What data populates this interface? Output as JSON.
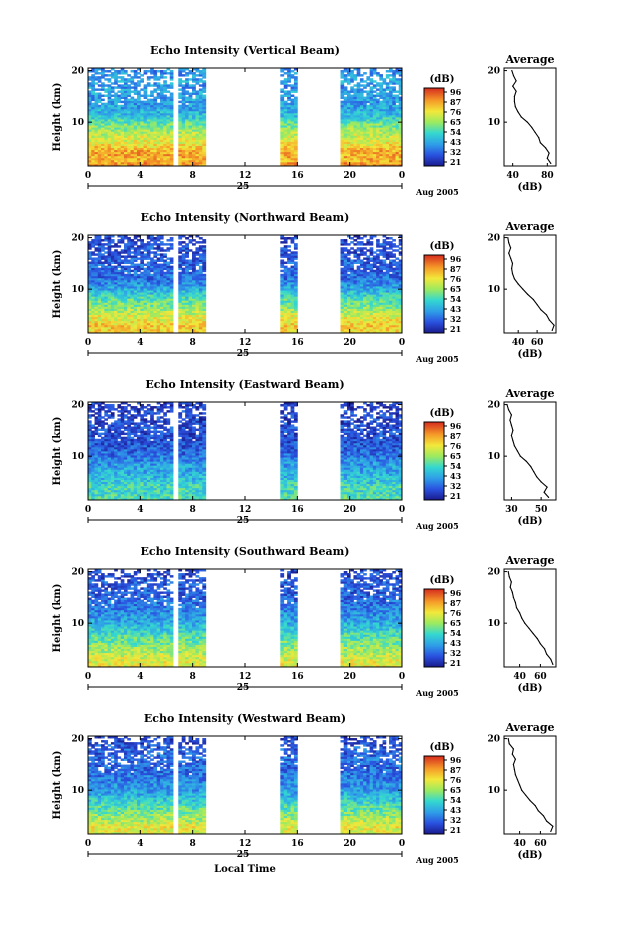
{
  "chart_data": [
    {
      "type": "heatmap",
      "title": "Echo Intensity (Vertical Beam)",
      "ylabel": "Height (km)",
      "xlabel": "",
      "x_ticks": [
        "0",
        "4",
        "8",
        "12",
        "16",
        "20",
        "0"
      ],
      "y_ticks": [
        "10",
        "20"
      ],
      "date_day": "25",
      "date_month": "Aug 2005",
      "xlim_hours": [
        0,
        24
      ],
      "ylim_km": [
        1.5,
        20.5
      ],
      "data_hours": [
        [
          0,
          6.5
        ],
        [
          6.9,
          9.0
        ],
        [
          14.7,
          16.0
        ],
        [
          19.3,
          24.0
        ]
      ],
      "colorbar": {
        "unit": "(dB)",
        "ticks": [
          "96",
          "87",
          "76",
          "65",
          "54",
          "43",
          "32",
          "21"
        ],
        "range": [
          21,
          96
        ]
      },
      "profile": {
        "title": "Average",
        "xlabel": "(dB)",
        "x_ticks": [
          "40",
          "80"
        ],
        "xlim": [
          30,
          90
        ],
        "y_ticks": [
          "10",
          "20"
        ],
        "height_km": [
          2,
          3,
          4,
          5,
          6,
          7,
          8,
          9,
          10,
          11,
          12,
          13,
          14,
          15,
          16,
          17,
          18,
          19,
          20
        ],
        "mean_db": [
          84,
          80,
          82,
          78,
          72,
          70,
          66,
          62,
          57,
          50,
          46,
          43,
          42,
          42,
          44,
          40,
          44,
          41,
          39
        ]
      }
    },
    {
      "type": "heatmap",
      "title": "Echo Intensity (Northward Beam)",
      "ylabel": "Height (km)",
      "xlabel": "",
      "x_ticks": [
        "0",
        "4",
        "8",
        "12",
        "16",
        "20",
        "0"
      ],
      "y_ticks": [
        "10",
        "20"
      ],
      "date_day": "25",
      "date_month": "Aug 2005",
      "xlim_hours": [
        0,
        24
      ],
      "ylim_km": [
        1.5,
        20.5
      ],
      "data_hours": [
        [
          0,
          6.5
        ],
        [
          6.9,
          9.0
        ],
        [
          14.7,
          16.0
        ],
        [
          19.3,
          24.0
        ]
      ],
      "colorbar": {
        "unit": "(dB)",
        "ticks": [
          "96",
          "87",
          "76",
          "65",
          "54",
          "43",
          "32",
          "21"
        ],
        "range": [
          21,
          96
        ]
      },
      "profile": {
        "title": "Average",
        "xlabel": "(dB)",
        "x_ticks": [
          "40",
          "60"
        ],
        "xlim": [
          25,
          80
        ],
        "y_ticks": [
          "10",
          "20"
        ],
        "height_km": [
          2,
          3,
          4,
          5,
          6,
          7,
          8,
          9,
          10,
          11,
          12,
          13,
          14,
          15,
          16,
          17,
          18,
          19,
          20
        ],
        "mean_db": [
          76,
          78,
          73,
          70,
          64,
          60,
          56,
          50,
          45,
          40,
          36,
          34,
          33,
          34,
          32,
          30,
          32,
          30,
          29
        ]
      }
    },
    {
      "type": "heatmap",
      "title": "Echo Intensity (Eastward Beam)",
      "ylabel": "Height (km)",
      "xlabel": "",
      "x_ticks": [
        "0",
        "4",
        "8",
        "12",
        "16",
        "20",
        "0"
      ],
      "y_ticks": [
        "10",
        "20"
      ],
      "date_day": "25",
      "date_month": "Aug 2005",
      "xlim_hours": [
        0,
        24
      ],
      "ylim_km": [
        1.5,
        20.5
      ],
      "data_hours": [
        [
          0,
          6.5
        ],
        [
          6.9,
          9.0
        ],
        [
          14.7,
          16.0
        ],
        [
          19.3,
          24.0
        ]
      ],
      "colorbar": {
        "unit": "(dB)",
        "ticks": [
          "96",
          "87",
          "76",
          "65",
          "54",
          "43",
          "32",
          "21"
        ],
        "range": [
          21,
          96
        ]
      },
      "profile": {
        "title": "Average",
        "xlabel": "(dB)",
        "x_ticks": [
          "30",
          "50"
        ],
        "xlim": [
          25,
          60
        ],
        "y_ticks": [
          "10",
          "20"
        ],
        "height_km": [
          2,
          3,
          4,
          5,
          6,
          7,
          8,
          9,
          10,
          11,
          12,
          13,
          14,
          15,
          16,
          17,
          18,
          19,
          20
        ],
        "mean_db": [
          55,
          52,
          54,
          50,
          47,
          45,
          43,
          40,
          36,
          34,
          32,
          31,
          30,
          31,
          30,
          29,
          30,
          28,
          27
        ]
      }
    },
    {
      "type": "heatmap",
      "title": "Echo Intensity (Southward Beam)",
      "ylabel": "Height (km)",
      "xlabel": "",
      "x_ticks": [
        "0",
        "4",
        "8",
        "12",
        "16",
        "20",
        "0"
      ],
      "y_ticks": [
        "10",
        "20"
      ],
      "date_day": "25",
      "date_month": "Aug 2005",
      "xlim_hours": [
        0,
        24
      ],
      "ylim_km": [
        1.5,
        20.5
      ],
      "data_hours": [
        [
          0,
          6.5
        ],
        [
          6.9,
          9.0
        ],
        [
          14.7,
          16.0
        ],
        [
          19.3,
          24.0
        ]
      ],
      "colorbar": {
        "unit": "(dB)",
        "ticks": [
          "96",
          "87",
          "76",
          "65",
          "54",
          "43",
          "32",
          "21"
        ],
        "range": [
          21,
          96
        ]
      },
      "profile": {
        "title": "Average",
        "xlabel": "(dB)",
        "x_ticks": [
          "40",
          "60"
        ],
        "xlim": [
          25,
          75
        ],
        "y_ticks": [
          "10",
          "20"
        ],
        "height_km": [
          2,
          3,
          4,
          5,
          6,
          7,
          8,
          9,
          10,
          11,
          12,
          13,
          14,
          15,
          16,
          17,
          18,
          19,
          20
        ],
        "mean_db": [
          72,
          70,
          66,
          64,
          60,
          57,
          53,
          49,
          45,
          42,
          40,
          37,
          36,
          34,
          33,
          31,
          32,
          30,
          29
        ]
      }
    },
    {
      "type": "heatmap",
      "title": "Echo Intensity (Westward Beam)",
      "ylabel": "Height (km)",
      "xlabel": "Local Time",
      "x_ticks": [
        "0",
        "4",
        "8",
        "12",
        "16",
        "20",
        "0"
      ],
      "y_ticks": [
        "10",
        "20"
      ],
      "date_day": "25",
      "date_month": "Aug 2005",
      "xlim_hours": [
        0,
        24
      ],
      "ylim_km": [
        1.5,
        20.5
      ],
      "data_hours": [
        [
          0,
          6.5
        ],
        [
          6.9,
          9.0
        ],
        [
          14.7,
          16.0
        ],
        [
          19.3,
          24.0
        ]
      ],
      "colorbar": {
        "unit": "(dB)",
        "ticks": [
          "96",
          "87",
          "76",
          "65",
          "54",
          "43",
          "32",
          "21"
        ],
        "range": [
          21,
          96
        ]
      },
      "profile": {
        "title": "Average",
        "xlabel": "(dB)",
        "x_ticks": [
          "40",
          "60"
        ],
        "xlim": [
          25,
          75
        ],
        "y_ticks": [
          "10",
          "20"
        ],
        "height_km": [
          2,
          3,
          4,
          5,
          6,
          7,
          8,
          9,
          10,
          11,
          12,
          13,
          14,
          15,
          16,
          17,
          18,
          19,
          20
        ],
        "mean_db": [
          70,
          72,
          66,
          63,
          58,
          55,
          50,
          46,
          42,
          40,
          38,
          36,
          35,
          34,
          36,
          33,
          34,
          30,
          29
        ]
      }
    }
  ]
}
